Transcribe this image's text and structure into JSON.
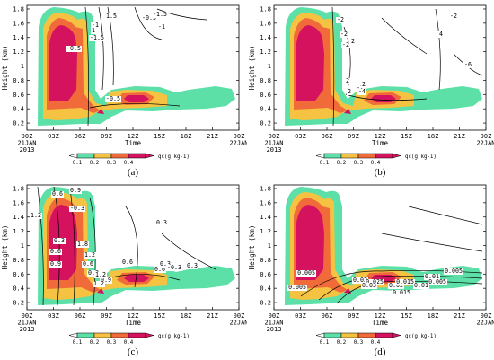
{
  "chart_data": [
    {
      "panel_label": "(a)",
      "type": "filled contour with line contours",
      "xlabel": "Time",
      "ylabel": "Height (km)",
      "x_ticks": [
        "00Z\n21JAN\n2013",
        "03Z",
        "06Z",
        "09Z",
        "12Z",
        "15Z",
        "18Z",
        "21Z",
        "00Z\n22JAN"
      ],
      "y_ticks": [
        "0.2",
        "0.4",
        "0.6",
        "0.8",
        "1",
        "1.2",
        "1.4",
        "1.6",
        "1.8"
      ],
      "ylim": [
        0.1,
        1.85
      ],
      "colorbar": {
        "label": "qc(g kg-1)",
        "ticks": [
          "0.1",
          "0.2",
          "0.3",
          "0.4"
        ],
        "colors": [
          "#5ce0a8",
          "#f5c242",
          "#f06a3a",
          "#d4125e"
        ]
      },
      "contour_labels": [
        "-0.5",
        "-1",
        "-1.5",
        "1",
        "-0.5",
        "-1",
        "-1.5",
        "1.5",
        "-0.5"
      ]
    },
    {
      "panel_label": "(b)",
      "type": "filled contour with line contours",
      "xlabel": "Time",
      "ylabel": "Height (km)",
      "x_ticks": [
        "00Z\n21JAN\n2013",
        "03Z",
        "06Z",
        "09Z",
        "12Z",
        "15Z",
        "18Z",
        "21Z",
        "00Z\n22JAN"
      ],
      "y_ticks": [
        "0.2",
        "0.4",
        "0.6",
        "0.8",
        "1",
        "1.2",
        "1.4",
        "1.6",
        "1.8"
      ],
      "ylim": [
        0.1,
        1.85
      ],
      "colorbar": {
        "label": "qc(g kg-1)",
        "ticks": [
          "0.1",
          "0.2",
          "0.3",
          "0.4"
        ],
        "colors": [
          "#5ce0a8",
          "#f5c242",
          "#f06a3a",
          "#d4125e"
        ]
      },
      "contour_labels": [
        "-2",
        "-2",
        "-2",
        "2",
        "4",
        "-2",
        "2",
        "-6",
        "-2",
        "2",
        "-4",
        "2"
      ]
    },
    {
      "panel_label": "(c)",
      "type": "filled contour with line contours",
      "xlabel": "Time",
      "ylabel": "Height (km)",
      "x_ticks": [
        "00Z\n21JAN\n2013",
        "03Z",
        "06Z",
        "09Z",
        "12Z",
        "15Z",
        "18Z",
        "21Z",
        "00Z\n22JAN"
      ],
      "y_ticks": [
        "0.2",
        "0.4",
        "0.6",
        "0.8",
        "1",
        "1.2",
        "1.4",
        "1.6",
        "1.8"
      ],
      "ylim": [
        0.1,
        1.85
      ],
      "colorbar": {
        "label": "qc(g kg-1)",
        "ticks": [
          "0.1",
          "0.2",
          "0.3",
          "0.4"
        ],
        "colors": [
          "#5ce0a8",
          "#f5c242",
          "#f06a3a",
          "#d4125e"
        ]
      },
      "contour_labels": [
        "1.2",
        "0.6",
        "0.9",
        "-0.3",
        "0.3",
        "0.6",
        "0.9",
        "1.8",
        "1.2",
        "0.6",
        "0.3",
        "0.6",
        "0.9",
        "1.2",
        "0.3",
        "0.6",
        "0.3",
        "-0.3",
        "0.3",
        "1.2"
      ]
    },
    {
      "panel_label": "(d)",
      "type": "filled contour with line contours",
      "xlabel": "Time",
      "ylabel": "Height (km)",
      "x_ticks": [
        "00Z\n21JAN\n2013",
        "03Z",
        "06Z",
        "09Z",
        "12Z",
        "15Z",
        "18Z",
        "21Z",
        "00Z\n22JAN"
      ],
      "y_ticks": [
        "0.2",
        "0.4",
        "0.6",
        "0.8",
        "1",
        "1.2",
        "1.4",
        "1.6",
        "1.8"
      ],
      "ylim": [
        0.1,
        1.85
      ],
      "colorbar": {
        "label": "qc(g kg-1)",
        "ticks": [
          "0.1",
          "0.2",
          "0.3",
          "0.4"
        ],
        "colors": [
          "#5ce0a8",
          "#f5c242",
          "#f06a3a",
          "#d4125e"
        ]
      },
      "contour_labels": [
        "0.005",
        "0.005",
        "0.02",
        "0.025",
        "0.03",
        "0.02",
        "0.015",
        "0.01",
        "0.005",
        "0.015",
        "0.01",
        "0.005"
      ]
    }
  ]
}
